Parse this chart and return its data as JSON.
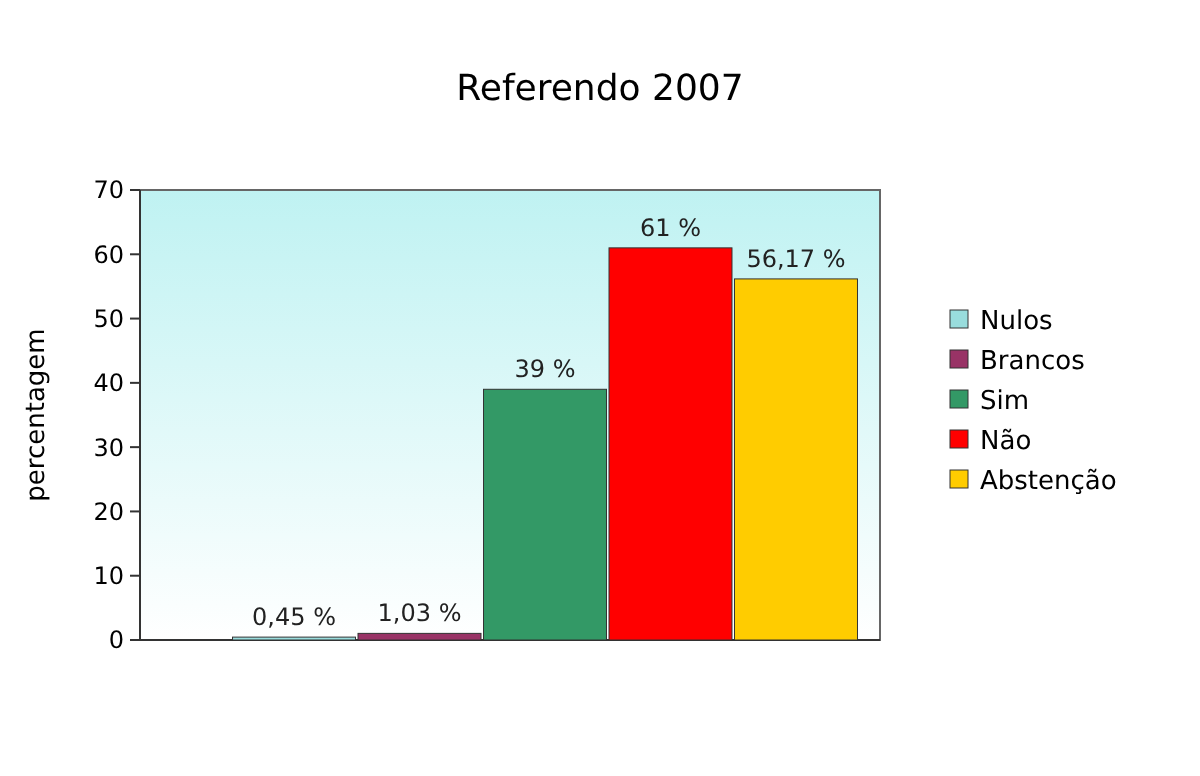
{
  "chart_data": {
    "type": "bar",
    "title": "Referendo 2007",
    "ylabel": "percentagem",
    "categories": [
      null
    ],
    "series": [
      {
        "name": "Nulos",
        "color": "#99dddd",
        "values": [
          0.45
        ],
        "value_labels": [
          "0,45 %"
        ]
      },
      {
        "name": "Brancos",
        "color": "#993366",
        "values": [
          1.03
        ],
        "value_labels": [
          "1,03 %"
        ]
      },
      {
        "name": "Sim",
        "color": "#339966",
        "values": [
          39
        ],
        "value_labels": [
          "39 %"
        ]
      },
      {
        "name": "Não",
        "color": "#ff0000",
        "values": [
          61
        ],
        "value_labels": [
          "61 %"
        ]
      },
      {
        "name": "Abstenção",
        "color": "#ffcc00",
        "values": [
          56.17
        ],
        "value_labels": [
          "56,17 %"
        ]
      }
    ],
    "ylim": [
      0,
      70
    ],
    "yticks": [
      0,
      10,
      20,
      30,
      40,
      50,
      60,
      70
    ],
    "grid": false,
    "legend": "right"
  }
}
